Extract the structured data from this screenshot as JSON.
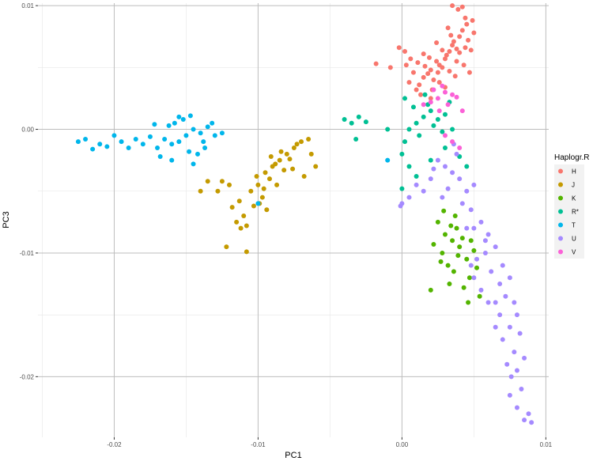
{
  "chart_data": {
    "type": "scatter",
    "xlabel": "PC1",
    "ylabel": "PC3",
    "xlim": [
      -0.0253,
      0.0102
    ],
    "ylim": [
      -0.0249,
      0.0102
    ],
    "x_ticks": [
      -0.02,
      -0.01,
      0.0,
      0.01
    ],
    "x_tick_labels": [
      "-0.02",
      "-0.01",
      "0.00",
      "0.01"
    ],
    "y_ticks": [
      -0.02,
      -0.01,
      0.0,
      0.01
    ],
    "y_tick_labels": [
      "-0.02",
      "-0.01",
      "0.00",
      "0.01"
    ],
    "grid": true,
    "legend_title": "Haplogr.R",
    "legend_position": "right",
    "series": [
      {
        "name": "H",
        "color": "#F8766D",
        "points": [
          [
            0.0026,
            0.0052
          ],
          [
            0.002,
            0.0048
          ],
          [
            0.0031,
            0.006
          ],
          [
            0.0035,
            0.0068
          ],
          [
            0.0015,
            0.0042
          ],
          [
            0.004,
            0.0075
          ],
          [
            0.0024,
            0.0055
          ],
          [
            0.0012,
            0.0036
          ],
          [
            0.0033,
            0.0063
          ],
          [
            0.0028,
            0.005
          ],
          [
            0.0018,
            0.0045
          ],
          [
            0.0042,
            0.008
          ],
          [
            0.0036,
            0.0071
          ],
          [
            0.0022,
            0.004
          ],
          [
            0.001,
            0.0032
          ],
          [
            0.003,
            0.0057
          ],
          [
            0.0038,
            0.0065
          ],
          [
            0.0025,
            0.0046
          ],
          [
            0.0016,
            0.0051
          ],
          [
            0.0034,
            0.0076
          ],
          [
            0.0045,
            0.0085
          ],
          [
            0.0046,
            0.0072
          ],
          [
            0.004,
            0.0062
          ],
          [
            0.0028,
            0.0064
          ],
          [
            0.0019,
            0.0058
          ],
          [
            0.0008,
            0.0046
          ],
          [
            0.0005,
            0.0038
          ],
          [
            0.0003,
            0.0052
          ],
          [
            0.0002,
            0.0063
          ],
          [
            0.0013,
            0.0028
          ],
          [
            0.002,
            0.0025
          ],
          [
            0.003,
            0.0034
          ],
          [
            0.0037,
            0.0043
          ],
          [
            0.0043,
            0.0052
          ],
          [
            0.0048,
            0.0064
          ],
          [
            0.005,
            0.0078
          ],
          [
            0.0044,
            0.009
          ],
          [
            0.0039,
            0.0097
          ],
          [
            0.0035,
            0.01
          ],
          [
            0.0042,
            0.0099
          ],
          [
            -0.0008,
            0.005
          ],
          [
            -0.0018,
            0.0053
          ],
          [
            -0.0002,
            0.0066
          ],
          [
            0.0006,
            0.0057
          ],
          [
            0.0024,
            0.007
          ],
          [
            0.0032,
            0.0082
          ],
          [
            0.0015,
            0.0061
          ],
          [
            0.0038,
            0.0055
          ],
          [
            0.0026,
            0.0038
          ],
          [
            0.0044,
            0.0066
          ],
          [
            0.0021,
            0.0032
          ],
          [
            0.0011,
            0.0054
          ],
          [
            0.0049,
            0.0088
          ],
          [
            0.0047,
            0.0046
          ],
          [
            0.0033,
            0.0047
          ]
        ]
      },
      {
        "name": "J",
        "color": "#C49A00",
        "points": [
          [
            -0.009,
            -0.003
          ],
          [
            -0.0085,
            -0.0025
          ],
          [
            -0.0095,
            -0.0035
          ],
          [
            -0.008,
            -0.002
          ],
          [
            -0.0075,
            -0.0015
          ],
          [
            -0.007,
            -0.001
          ],
          [
            -0.01,
            -0.0045
          ],
          [
            -0.0105,
            -0.005
          ],
          [
            -0.0092,
            -0.004
          ],
          [
            -0.0088,
            -0.0028
          ],
          [
            -0.0082,
            -0.0033
          ],
          [
            -0.0078,
            -0.0024
          ],
          [
            -0.0065,
            -0.0008
          ],
          [
            -0.006,
            -0.003
          ],
          [
            -0.0068,
            -0.0038
          ],
          [
            -0.0097,
            -0.0055
          ],
          [
            -0.0103,
            -0.0062
          ],
          [
            -0.011,
            -0.007
          ],
          [
            -0.0115,
            -0.0075
          ],
          [
            -0.0112,
            -0.008
          ],
          [
            -0.0108,
            -0.0078
          ],
          [
            -0.0099,
            -0.006
          ],
          [
            -0.0094,
            -0.0065
          ],
          [
            -0.012,
            -0.0045
          ],
          [
            -0.0125,
            -0.0042
          ],
          [
            -0.0128,
            -0.005
          ],
          [
            -0.0122,
            -0.0095
          ],
          [
            -0.0108,
            -0.0099
          ],
          [
            -0.0135,
            -0.0042
          ],
          [
            -0.014,
            -0.005
          ],
          [
            -0.0084,
            -0.0018
          ],
          [
            -0.0073,
            -0.0012
          ],
          [
            -0.0091,
            -0.0022
          ],
          [
            -0.0076,
            -0.0032
          ],
          [
            -0.0087,
            -0.0045
          ],
          [
            -0.0101,
            -0.0038
          ],
          [
            -0.0118,
            -0.0063
          ],
          [
            -0.0113,
            -0.0058
          ],
          [
            -0.0096,
            -0.0048
          ],
          [
            -0.0063,
            -0.002
          ]
        ]
      },
      {
        "name": "K",
        "color": "#53B400",
        "points": [
          [
            0.0035,
            -0.009
          ],
          [
            0.003,
            -0.0085
          ],
          [
            0.004,
            -0.0095
          ],
          [
            0.0028,
            -0.01
          ],
          [
            0.0038,
            -0.008
          ],
          [
            0.0045,
            -0.0105
          ],
          [
            0.0032,
            -0.011
          ],
          [
            0.0025,
            -0.0075
          ],
          [
            0.0042,
            -0.0088
          ],
          [
            0.0036,
            -0.0115
          ],
          [
            0.005,
            -0.0098
          ],
          [
            0.0022,
            -0.0093
          ],
          [
            0.0047,
            -0.012
          ],
          [
            0.0033,
            -0.0125
          ],
          [
            0.002,
            -0.013
          ],
          [
            0.0054,
            -0.0135
          ],
          [
            0.0046,
            -0.014
          ],
          [
            0.0037,
            -0.007
          ],
          [
            0.0029,
            -0.0066
          ],
          [
            0.0052,
            -0.0112
          ],
          [
            0.0043,
            -0.0128
          ],
          [
            0.0027,
            -0.0107
          ],
          [
            0.0039,
            -0.0102
          ],
          [
            0.0048,
            -0.009
          ],
          [
            0.0034,
            -0.0078
          ]
        ]
      },
      {
        "name": "R*",
        "color": "#00C094",
        "points": [
          [
            0.0015,
            0.001
          ],
          [
            0.002,
            0.0015
          ],
          [
            0.001,
            0.0005
          ],
          [
            0.0025,
            0.0008
          ],
          [
            0.0005,
            0.0
          ],
          [
            0.0018,
            0.002
          ],
          [
            0.003,
            0.0012
          ],
          [
            0.0012,
            -0.0005
          ],
          [
            0.0028,
            -0.0002
          ],
          [
            0.0008,
            0.0018
          ],
          [
            0.0022,
            0.0003
          ],
          [
            0.0033,
            0.0022
          ],
          [
            0.0002,
            -0.001
          ],
          [
            0.0016,
            0.0028
          ],
          [
            0.0035,
            0.0
          ],
          [
            -0.003,
            0.001
          ],
          [
            -0.0035,
            0.0005
          ],
          [
            -0.004,
            0.0008
          ],
          [
            -0.0032,
            -0.0008
          ],
          [
            -0.0025,
            0.0006
          ],
          [
            -0.001,
            0.0
          ],
          [
            0.0,
            -0.002
          ],
          [
            0.0005,
            -0.003
          ],
          [
            0.001,
            -0.0038
          ],
          [
            0.002,
            -0.0025
          ],
          [
            0.003,
            -0.0015
          ],
          [
            0.004,
            -0.0022
          ],
          [
            0.0045,
            -0.003
          ],
          [
            0.0,
            -0.0048
          ],
          [
            0.0002,
            0.0025
          ]
        ]
      },
      {
        "name": "T",
        "color": "#00B6EB",
        "points": [
          [
            -0.015,
            -0.0005
          ],
          [
            -0.0155,
            -0.001
          ],
          [
            -0.0145,
            0.0
          ],
          [
            -0.016,
            -0.0012
          ],
          [
            -0.014,
            -0.0003
          ],
          [
            -0.0165,
            -0.0008
          ],
          [
            -0.0135,
            0.0002
          ],
          [
            -0.017,
            -0.0015
          ],
          [
            -0.0158,
            0.0005
          ],
          [
            -0.0148,
            -0.0018
          ],
          [
            -0.0152,
            0.0008
          ],
          [
            -0.0162,
            0.0003
          ],
          [
            -0.0142,
            -0.002
          ],
          [
            -0.0138,
            -0.001
          ],
          [
            -0.0175,
            -0.0006
          ],
          [
            -0.018,
            -0.0012
          ],
          [
            -0.0185,
            -0.0008
          ],
          [
            -0.019,
            -0.0015
          ],
          [
            -0.0195,
            -0.001
          ],
          [
            -0.02,
            -0.0005
          ],
          [
            -0.0205,
            -0.0014
          ],
          [
            -0.021,
            -0.0012
          ],
          [
            -0.0215,
            -0.0016
          ],
          [
            -0.022,
            -0.0008
          ],
          [
            -0.0225,
            -0.001
          ],
          [
            -0.013,
            -0.0005
          ],
          [
            -0.0125,
            -0.0003
          ],
          [
            -0.0132,
            0.0005
          ],
          [
            -0.0168,
            -0.0022
          ],
          [
            -0.0145,
            -0.0028
          ],
          [
            -0.0155,
            0.001
          ],
          [
            -0.016,
            -0.0025
          ],
          [
            -0.0172,
            0.0004
          ],
          [
            -0.0147,
            0.0011
          ],
          [
            -0.0137,
            -0.0015
          ],
          [
            -0.01,
            -0.006
          ],
          [
            -0.001,
            -0.0025
          ]
        ]
      },
      {
        "name": "U",
        "color": "#A58AFF",
        "points": [
          [
            0.0035,
            -0.0035
          ],
          [
            0.003,
            -0.003
          ],
          [
            0.004,
            -0.004
          ],
          [
            0.0025,
            -0.0025
          ],
          [
            0.0045,
            -0.005
          ],
          [
            0.002,
            -0.004
          ],
          [
            0.005,
            -0.0045
          ],
          [
            0.0015,
            -0.005
          ],
          [
            0.0038,
            -0.002
          ],
          [
            0.0028,
            -0.0055
          ],
          [
            0.001,
            -0.0045
          ],
          [
            0.0,
            -0.006
          ],
          [
            0.0005,
            -0.0055
          ],
          [
            0.0042,
            -0.006
          ],
          [
            0.0055,
            -0.0075
          ],
          [
            0.006,
            -0.0085
          ],
          [
            0.005,
            -0.008
          ],
          [
            0.0065,
            -0.0095
          ],
          [
            0.0058,
            -0.01
          ],
          [
            0.007,
            -0.011
          ],
          [
            0.0062,
            -0.0115
          ],
          [
            0.0075,
            -0.012
          ],
          [
            0.0068,
            -0.0125
          ],
          [
            0.0072,
            -0.0135
          ],
          [
            0.0078,
            -0.014
          ],
          [
            0.0065,
            -0.014
          ],
          [
            0.008,
            -0.015
          ],
          [
            0.0075,
            -0.016
          ],
          [
            0.0082,
            -0.0165
          ],
          [
            0.007,
            -0.017
          ],
          [
            0.0078,
            -0.018
          ],
          [
            0.0085,
            -0.0185
          ],
          [
            0.008,
            -0.0195
          ],
          [
            0.0076,
            -0.02
          ],
          [
            0.0083,
            -0.021
          ],
          [
            0.0075,
            -0.0215
          ],
          [
            0.008,
            -0.0225
          ],
          [
            0.0085,
            -0.0235
          ],
          [
            0.009,
            -0.0237
          ],
          [
            0.0088,
            -0.023
          ],
          [
            0.0055,
            -0.013
          ],
          [
            0.005,
            -0.012
          ],
          [
            0.0048,
            -0.011
          ],
          [
            0.006,
            -0.014
          ],
          [
            0.0052,
            -0.0105
          ],
          [
            0.0045,
            -0.008
          ],
          [
            0.0058,
            -0.009
          ],
          [
            0.0068,
            -0.015
          ],
          [
            0.0073,
            -0.019
          ],
          [
            0.0065,
            -0.016
          ],
          [
            0.0032,
            -0.0048
          ],
          [
            0.0022,
            -0.0032
          ],
          [
            0.0048,
            -0.0065
          ],
          [
            0.0036,
            -0.0012
          ],
          [
            -0.0001,
            -0.0062
          ]
        ]
      },
      {
        "name": "V",
        "color": "#FB61D7",
        "points": [
          [
            0.0025,
            0.0025
          ],
          [
            0.003,
            0.003
          ],
          [
            0.002,
            0.0022
          ],
          [
            0.0035,
            0.0028
          ],
          [
            0.0028,
            0.0035
          ],
          [
            0.0015,
            0.002
          ],
          [
            0.0032,
            0.002
          ],
          [
            0.0022,
            0.0032
          ],
          [
            0.0038,
            0.0026
          ],
          [
            0.0026,
            0.0015
          ],
          [
            0.0035,
            -0.001
          ],
          [
            0.004,
            -0.0015
          ],
          [
            0.003,
            -0.0005
          ],
          [
            0.0042,
            0.0015
          ]
        ]
      }
    ]
  }
}
